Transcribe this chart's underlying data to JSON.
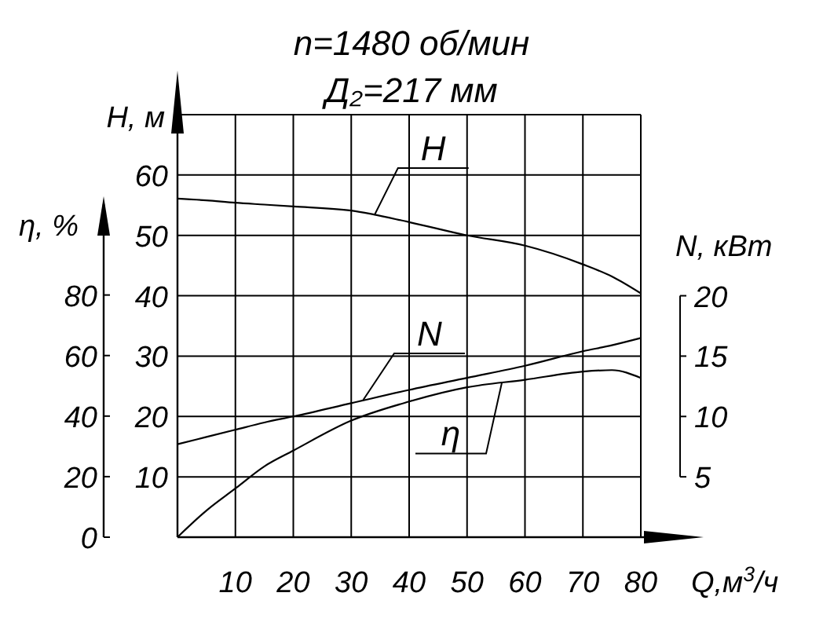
{
  "chart_data": {
    "type": "line",
    "title": "n=1480 об/мин",
    "subtitle": "Д₂=217 мм",
    "xlabel": "Q,м$^{3}$/ч",
    "ylabel": "H, м",
    "y2label": "N, кВт",
    "y3label": "η, %",
    "xlim": [
      0,
      80
    ],
    "xticks": [
      10,
      20,
      30,
      40,
      50,
      60,
      70,
      80
    ],
    "ylim": [
      0,
      70
    ],
    "yticks": [
      10,
      20,
      30,
      40,
      50,
      60,
      {
        "value": 70,
        "label": null
      }
    ],
    "y2lim": [
      0,
      35
    ],
    "y2ticks": [
      5,
      10,
      15,
      20
    ],
    "y3lim": [
      0,
      110
    ],
    "y3ticks": [
      0,
      20,
      40,
      60,
      80
    ],
    "grid": true,
    "marker": "none",
    "line_style": "solid",
    "x": [
      0,
      5,
      10,
      15,
      20,
      30,
      40,
      50,
      60,
      70,
      75,
      80
    ],
    "series": [
      {
        "name": "H",
        "color": "#000000",
        "values": [
          56.1,
          55.8,
          55.4,
          55.1,
          54.8,
          54.1,
          52.2,
          50.0,
          48.3,
          45.2,
          43.2,
          40.4
        ]
      },
      {
        "name": "N",
        "color": "#000000",
        "axis": "y2",
        "values": [
          7.7,
          8.3,
          8.9,
          9.5,
          10.0,
          11.1,
          12.2,
          13.2,
          14.2,
          15.4,
          15.9,
          16.5
        ]
      },
      {
        "name": "η",
        "color": "#000000",
        "axis": "y3",
        "values": [
          0,
          8.8,
          16.1,
          23.4,
          28.6,
          38.5,
          44.8,
          49.5,
          52.0,
          54.7,
          55.2,
          52.6
        ]
      }
    ]
  }
}
